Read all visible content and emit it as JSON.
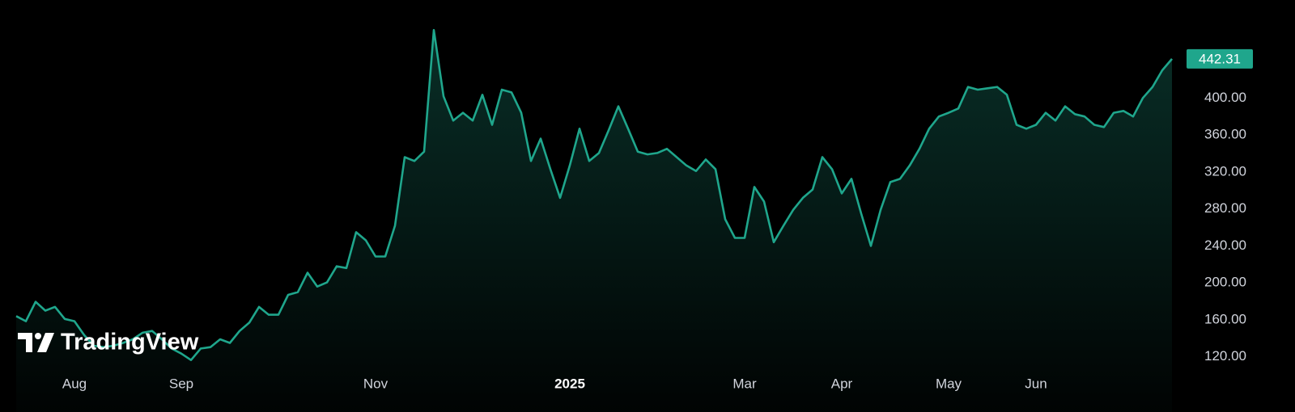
{
  "chart_data": {
    "type": "area",
    "watermark": "TradingView",
    "color": "#1fa68c",
    "categories": [
      null,
      null,
      null,
      null,
      null,
      null,
      "Aug",
      null,
      null,
      null,
      null,
      null,
      null,
      null,
      null,
      null,
      null,
      "Sep",
      null,
      null,
      null,
      null,
      null,
      null,
      null,
      null,
      null,
      null,
      null,
      null,
      null,
      null,
      null,
      null,
      null,
      null,
      null,
      "Nov",
      null,
      null,
      null,
      null,
      null,
      null,
      null,
      null,
      null,
      null,
      null,
      null,
      null,
      null,
      null,
      null,
      null,
      null,
      null,
      "2025",
      null,
      null,
      null,
      null,
      null,
      null,
      null,
      null,
      null,
      null,
      null,
      null,
      null,
      null,
      null,
      null,
      null,
      "Mar",
      null,
      null,
      null,
      null,
      null,
      null,
      null,
      null,
      null,
      "Apr",
      null,
      null,
      null,
      null,
      null,
      null,
      null,
      null,
      null,
      null,
      "May",
      null,
      null,
      null,
      null,
      null,
      null,
      null,
      null,
      "Jun",
      null,
      null,
      null,
      null,
      null,
      null,
      null,
      null,
      null,
      null,
      null,
      null,
      null,
      null
    ],
    "values": [
      164,
      158.5,
      179.5,
      170,
      174,
      161,
      158.5,
      143.6,
      132,
      130.5,
      132,
      135,
      139,
      146,
      148,
      139,
      129,
      123.5,
      116.5,
      129,
      130.5,
      139,
      135,
      148,
      157,
      174,
      165.5,
      165.5,
      187,
      190,
      211,
      196,
      200.5,
      218,
      216,
      254.8,
      246,
      228.5,
      228.5,
      261.8,
      336,
      331.8,
      342,
      473.5,
      401.8,
      375.5,
      384,
      375.5,
      403.5,
      371,
      409,
      406,
      384,
      331.8,
      356,
      323,
      292,
      327,
      366.8,
      331.8,
      340.5,
      365,
      391,
      366.8,
      342,
      339,
      340.5,
      345,
      336,
      327,
      321,
      333.5,
      323,
      268.8,
      248.6,
      248.6,
      303.8,
      288,
      244,
      261.8,
      279,
      292,
      301,
      336,
      323,
      296.8,
      312.5,
      275,
      240,
      279,
      309,
      312.5,
      327,
      345,
      366.8,
      380,
      384,
      388.6,
      412,
      409,
      410.5,
      412,
      403.5,
      371,
      366.8,
      371,
      384,
      375.5,
      391,
      382.5,
      380,
      371,
      368.5,
      384,
      386,
      380,
      400,
      412,
      430,
      442.31
    ],
    "ylim": [
      104,
      506
    ],
    "yticks": [
      {
        "value": 120,
        "label": "120.00"
      },
      {
        "value": 160,
        "label": "160.00"
      },
      {
        "value": 200,
        "label": "200.00"
      },
      {
        "value": 240,
        "label": "240.00"
      },
      {
        "value": 280,
        "label": "280.00"
      },
      {
        "value": 320,
        "label": "320.00"
      },
      {
        "value": 360,
        "label": "360.00"
      },
      {
        "value": 400,
        "label": "400.00"
      }
    ],
    "grid": false
  }
}
